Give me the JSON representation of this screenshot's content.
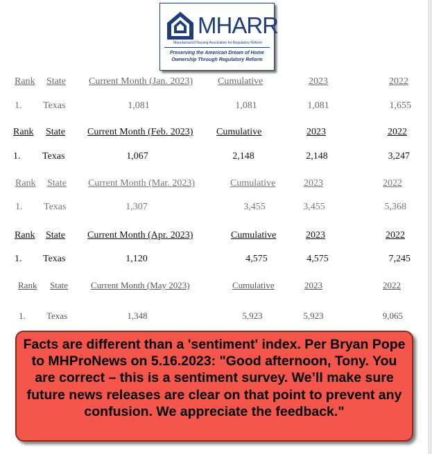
{
  "logo": {
    "name": "MHARR",
    "subtitle": "Manufactured Housing Association for Regulatory Reform",
    "tagline": "Preserving the American Dream of Home Ownership Through Regulatory Reform"
  },
  "tables": [
    {
      "headers": [
        "Rank",
        "State",
        "Current Month (Jan. 2023)",
        "Cumulative",
        "2023",
        "2022"
      ],
      "row": [
        "1.",
        "Texas",
        "1,081",
        "1,081",
        "1,081",
        "1,655"
      ]
    },
    {
      "headers": [
        "Rank",
        "State",
        "Current Month (Feb. 2023)",
        "Cumulative",
        "2023",
        "2022"
      ],
      "row": [
        "1.",
        "Texas",
        "1,067",
        "2,148",
        "2,148",
        "3,247"
      ]
    },
    {
      "headers": [
        "Rank",
        "State",
        "Current Month (Mar. 2023)",
        "Cumulative",
        "2023",
        "2022"
      ],
      "row": [
        "1.",
        "Texas",
        "1,307",
        "3,455",
        "3,455",
        "5,368"
      ]
    },
    {
      "headers": [
        "Rank",
        "State",
        "Current Month (Apr. 2023)",
        "Cumulative",
        "2023",
        "2022"
      ],
      "row": [
        "1.",
        "Texas",
        "1,120",
        "4,575",
        "4,575",
        "7,245"
      ]
    },
    {
      "headers": [
        "Rank",
        "State",
        "Current Month (May 2023)",
        "Cumulative",
        "2023",
        "2022"
      ],
      "row": [
        "1.",
        "Texas",
        "1,348",
        "5,923",
        "5,923",
        "9,065"
      ]
    }
  ],
  "callout": {
    "text": "Facts are different than a 'sentiment' index. Per Bryan Pope to MHProNews on 5.16.2023: \"Good afternoon, Tony. You are correct – this is a sentiment survey. We’ll make sure future news releases are clear on that point to prevent any confusion. We appreciate the feedback.\""
  }
}
